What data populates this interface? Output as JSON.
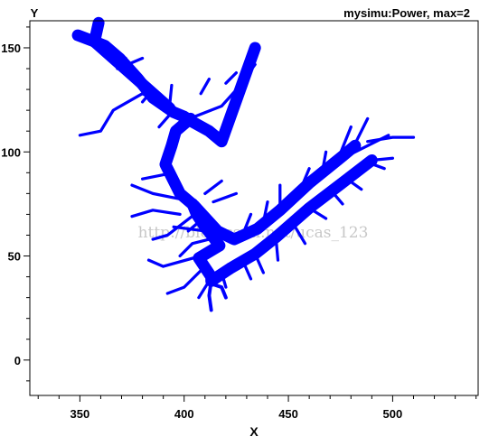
{
  "chart_data": {
    "type": "line",
    "title": "mysimu:Power, max=2",
    "xlabel": "X",
    "ylabel": "Y",
    "xlim": [
      326,
      541
    ],
    "ylim": [
      -17,
      163
    ],
    "xticks": [
      350,
      400,
      450,
      500
    ],
    "yticks": [
      0,
      50,
      100,
      150
    ],
    "grid": false,
    "legend": "none",
    "line_color": "#0000ff",
    "watermark": "http://blog.csdn.net/ucas_123",
    "max_power": 2,
    "series": [
      {
        "weight": 2,
        "points": [
          [
            359,
            162
          ],
          [
            357,
            153
          ],
          [
            362,
            151
          ],
          [
            369,
            145
          ],
          [
            378,
            135
          ],
          [
            385,
            126
          ],
          [
            395,
            119
          ],
          [
            400,
            117
          ],
          [
            403,
            115
          ],
          [
            412,
            110
          ],
          [
            418,
            105
          ],
          [
            434,
            150
          ]
        ]
      },
      {
        "weight": 2,
        "points": [
          [
            357,
            153
          ],
          [
            349,
            156
          ]
        ]
      },
      {
        "weight": 2,
        "points": [
          [
            357,
            153
          ],
          [
            393,
            121
          ]
        ]
      },
      {
        "weight": 2,
        "points": [
          [
            403,
            116
          ],
          [
            396,
            110
          ],
          [
            394,
            103
          ],
          [
            391,
            94
          ],
          [
            393,
            90
          ],
          [
            398,
            80
          ],
          [
            405,
            74
          ],
          [
            416,
            62
          ],
          [
            424,
            58
          ],
          [
            435,
            63
          ],
          [
            446,
            72
          ],
          [
            460,
            85
          ],
          [
            476,
            98
          ],
          [
            482,
            103
          ]
        ]
      },
      {
        "weight": 2,
        "points": [
          [
            404,
            75
          ],
          [
            406,
            70
          ],
          [
            410,
            64
          ],
          [
            414,
            59
          ],
          [
            417,
            55
          ],
          [
            407,
            49
          ],
          [
            413,
            40
          ],
          [
            413,
            38
          ],
          [
            422,
            44
          ],
          [
            434,
            51
          ],
          [
            444,
            59
          ],
          [
            460,
            73
          ],
          [
            477,
            86
          ],
          [
            490,
            96
          ]
        ]
      },
      {
        "weight": 0.6,
        "points": [
          [
            413,
            38
          ],
          [
            412,
            31
          ],
          [
            413,
            24
          ]
        ]
      },
      {
        "weight": 0.6,
        "points": [
          [
            412,
            37
          ],
          [
            418,
            35
          ],
          [
            420,
            30
          ]
        ]
      },
      {
        "weight": 0.5,
        "points": [
          [
            434,
            142
          ],
          [
            426,
            131
          ],
          [
            418,
            122
          ],
          [
            400,
            115
          ]
        ]
      },
      {
        "weight": 0.5,
        "points": [
          [
            395,
            120
          ],
          [
            380,
            128
          ],
          [
            366,
            120
          ],
          [
            360,
            110
          ],
          [
            350,
            108
          ]
        ]
      },
      {
        "weight": 0.5,
        "points": [
          [
            488,
            105
          ],
          [
            500,
            107
          ],
          [
            510,
            107
          ]
        ]
      },
      {
        "weight": 0.5,
        "points": [
          [
            490,
            96
          ],
          [
            500,
            97
          ]
        ]
      },
      {
        "weight": 0.5,
        "points": [
          [
            498,
            108
          ],
          [
            478,
            98
          ]
        ]
      },
      {
        "weight": 0.5,
        "points": [
          [
            372,
            145
          ],
          [
            368,
            140
          ]
        ]
      },
      {
        "weight": 0.5,
        "points": [
          [
            385,
            130
          ],
          [
            380,
            124
          ]
        ]
      },
      {
        "weight": 0.5,
        "points": [
          [
            395,
            120
          ],
          [
            388,
            112
          ]
        ]
      },
      {
        "weight": 0.5,
        "points": [
          [
            373,
            142
          ],
          [
            380,
            145
          ]
        ]
      },
      {
        "weight": 0.5,
        "points": [
          [
            393,
            122
          ],
          [
            394,
            132
          ]
        ]
      },
      {
        "weight": 0.5,
        "points": [
          [
            412,
            135
          ],
          [
            408,
            128
          ]
        ]
      },
      {
        "weight": 0.5,
        "points": [
          [
            420,
            133
          ],
          [
            425,
            138
          ]
        ]
      },
      {
        "weight": 0.5,
        "points": [
          [
            395,
            90
          ],
          [
            380,
            87
          ]
        ]
      },
      {
        "weight": 0.5,
        "points": [
          [
            400,
            77
          ],
          [
            385,
            80
          ],
          [
            375,
            84
          ]
        ]
      },
      {
        "weight": 0.5,
        "points": [
          [
            400,
            78
          ],
          [
            395,
            82
          ]
        ]
      },
      {
        "weight": 0.5,
        "points": [
          [
            398,
            70
          ],
          [
            385,
            72
          ],
          [
            375,
            69
          ]
        ]
      },
      {
        "weight": 0.5,
        "points": [
          [
            405,
            70
          ],
          [
            392,
            60
          ],
          [
            385,
            58
          ]
        ]
      },
      {
        "weight": 0.5,
        "points": [
          [
            410,
            62
          ],
          [
            395,
            64
          ]
        ]
      },
      {
        "weight": 0.5,
        "points": [
          [
            408,
            50
          ],
          [
            390,
            45
          ],
          [
            383,
            48
          ]
        ]
      },
      {
        "weight": 0.5,
        "points": [
          [
            410,
            45
          ],
          [
            400,
            35
          ],
          [
            392,
            32
          ]
        ]
      },
      {
        "weight": 0.5,
        "points": [
          [
            412,
            38
          ],
          [
            407,
            30
          ]
        ]
      },
      {
        "weight": 0.5,
        "points": [
          [
            418,
            42
          ],
          [
            420,
            35
          ]
        ]
      },
      {
        "weight": 0.5,
        "points": [
          [
            428,
            48
          ],
          [
            432,
            39
          ]
        ]
      },
      {
        "weight": 0.5,
        "points": [
          [
            434,
            51
          ],
          [
            438,
            42
          ]
        ]
      },
      {
        "weight": 0.5,
        "points": [
          [
            444,
            59
          ],
          [
            445,
            48
          ]
        ]
      },
      {
        "weight": 0.5,
        "points": [
          [
            452,
            66
          ],
          [
            458,
            56
          ]
        ]
      },
      {
        "weight": 0.5,
        "points": [
          [
            460,
            73
          ],
          [
            468,
            68
          ]
        ]
      },
      {
        "weight": 0.5,
        "points": [
          [
            470,
            82
          ],
          [
            476,
            75
          ]
        ]
      },
      {
        "weight": 0.5,
        "points": [
          [
            478,
            87
          ],
          [
            485,
            82
          ]
        ]
      },
      {
        "weight": 0.5,
        "points": [
          [
            488,
            95
          ],
          [
            496,
            92
          ]
        ]
      },
      {
        "weight": 0.5,
        "points": [
          [
            428,
            60
          ],
          [
            432,
            70
          ]
        ]
      },
      {
        "weight": 0.5,
        "points": [
          [
            438,
            66
          ],
          [
            440,
            76
          ]
        ]
      },
      {
        "weight": 0.5,
        "points": [
          [
            446,
            72
          ],
          [
            446,
            84
          ]
        ]
      },
      {
        "weight": 0.5,
        "points": [
          [
            455,
            80
          ],
          [
            460,
            92
          ]
        ]
      },
      {
        "weight": 0.5,
        "points": [
          [
            466,
            89
          ],
          [
            468,
            100
          ]
        ]
      },
      {
        "weight": 0.5,
        "points": [
          [
            474,
            97
          ],
          [
            480,
            112
          ]
        ]
      },
      {
        "weight": 0.5,
        "points": [
          [
            480,
            100
          ],
          [
            488,
            116
          ]
        ]
      },
      {
        "weight": 0.5,
        "points": [
          [
            412,
            58
          ],
          [
            404,
            56
          ],
          [
            398,
            50
          ]
        ]
      },
      {
        "weight": 0.5,
        "points": [
          [
            409,
            68
          ],
          [
            402,
            62
          ]
        ]
      },
      {
        "weight": 0.5,
        "points": [
          [
            410,
            80
          ],
          [
            418,
            86
          ]
        ]
      },
      {
        "weight": 0.5,
        "points": [
          [
            414,
            76
          ],
          [
            425,
            80
          ]
        ]
      }
    ]
  }
}
